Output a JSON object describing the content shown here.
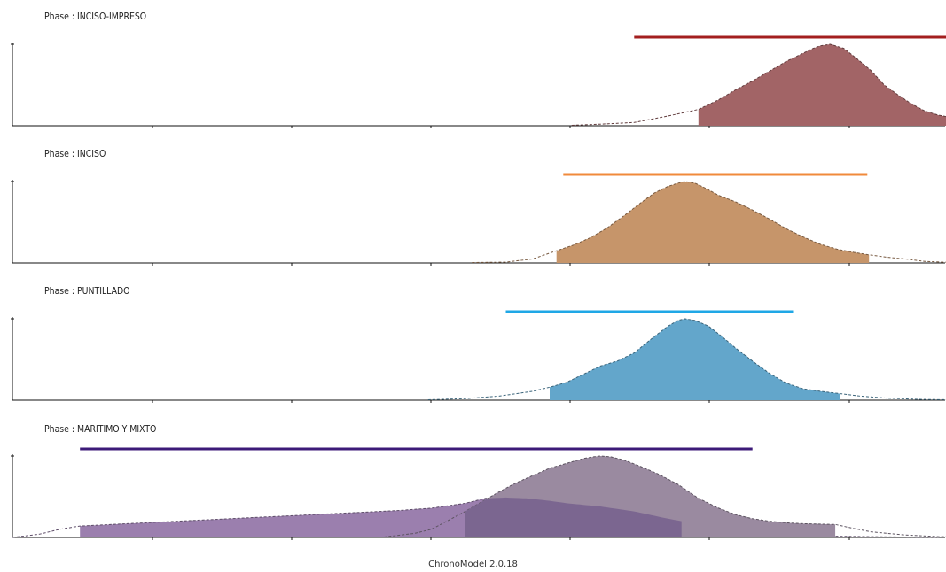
{
  "footer": "ChronoModel 2.0.18",
  "chart_data": [
    {
      "type": "area",
      "title": "Phase : INCISO-IMPRESO",
      "color": "#a26466",
      "bar_color": "#a31f1f",
      "interval": [
        -1200,
        -170
      ],
      "highlight": [
        -1010,
        -60
      ],
      "density": [
        [
          -1385,
          0.005
        ],
        [
          -1300,
          0.02
        ],
        [
          -1200,
          0.04
        ],
        [
          -1100,
          0.12
        ],
        [
          -1010,
          0.2
        ],
        [
          -950,
          0.32
        ],
        [
          -900,
          0.44
        ],
        [
          -850,
          0.55
        ],
        [
          -800,
          0.67
        ],
        [
          -750,
          0.79
        ],
        [
          -700,
          0.89
        ],
        [
          -670,
          0.95
        ],
        [
          -650,
          0.98
        ],
        [
          -620,
          1.0
        ],
        [
          -580,
          0.95
        ],
        [
          -540,
          0.82
        ],
        [
          -500,
          0.68
        ],
        [
          -460,
          0.5
        ],
        [
          -420,
          0.38
        ],
        [
          -380,
          0.27
        ],
        [
          -340,
          0.18
        ],
        [
          -300,
          0.13
        ],
        [
          -260,
          0.1
        ],
        [
          -200,
          0.07
        ],
        [
          -150,
          0.05
        ],
        [
          -100,
          0.035
        ],
        [
          -60,
          0.025
        ]
      ],
      "ylim": [
        0,
        1.1
      ]
    },
    {
      "type": "area",
      "title": "Phase : INCISO",
      "color": "#c6956a",
      "bar_color": "#f08a3b",
      "interval": [
        -1410,
        -510
      ],
      "highlight": [
        -1430,
        -505
      ],
      "density": [
        [
          -1680,
          0.005
        ],
        [
          -1580,
          0.01
        ],
        [
          -1500,
          0.05
        ],
        [
          -1430,
          0.15
        ],
        [
          -1380,
          0.22
        ],
        [
          -1330,
          0.31
        ],
        [
          -1280,
          0.43
        ],
        [
          -1230,
          0.58
        ],
        [
          -1180,
          0.74
        ],
        [
          -1140,
          0.86
        ],
        [
          -1100,
          0.94
        ],
        [
          -1070,
          0.98
        ],
        [
          -1050,
          1.0
        ],
        [
          -1020,
          0.98
        ],
        [
          -990,
          0.92
        ],
        [
          -950,
          0.83
        ],
        [
          -900,
          0.75
        ],
        [
          -850,
          0.65
        ],
        [
          -800,
          0.54
        ],
        [
          -750,
          0.42
        ],
        [
          -700,
          0.32
        ],
        [
          -650,
          0.23
        ],
        [
          -600,
          0.17
        ],
        [
          -550,
          0.13
        ],
        [
          -505,
          0.1
        ],
        [
          -450,
          0.07
        ],
        [
          -400,
          0.05
        ],
        [
          -340,
          0.02
        ],
        [
          -260,
          0.005
        ]
      ],
      "ylim": [
        0,
        1.1
      ]
    },
    {
      "type": "area",
      "title": "Phase : PUNTILLADO",
      "color": "#63a6cb",
      "bar_color": "#1fa7e6",
      "interval": [
        -1580,
        -730
      ],
      "highlight": [
        -1450,
        -590
      ],
      "density": [
        [
          -1810,
          0.005
        ],
        [
          -1700,
          0.02
        ],
        [
          -1600,
          0.05
        ],
        [
          -1500,
          0.11
        ],
        [
          -1450,
          0.16
        ],
        [
          -1400,
          0.22
        ],
        [
          -1350,
          0.32
        ],
        [
          -1300,
          0.42
        ],
        [
          -1250,
          0.48
        ],
        [
          -1200,
          0.58
        ],
        [
          -1150,
          0.75
        ],
        [
          -1100,
          0.91
        ],
        [
          -1070,
          0.98
        ],
        [
          -1050,
          1.0
        ],
        [
          -1020,
          0.98
        ],
        [
          -980,
          0.91
        ],
        [
          -940,
          0.78
        ],
        [
          -900,
          0.64
        ],
        [
          -850,
          0.48
        ],
        [
          -800,
          0.33
        ],
        [
          -750,
          0.21
        ],
        [
          -700,
          0.14
        ],
        [
          -650,
          0.11
        ],
        [
          -590,
          0.08
        ],
        [
          -530,
          0.05
        ],
        [
          -450,
          0.025
        ],
        [
          -350,
          0.01
        ],
        [
          -270,
          0.005
        ]
      ],
      "ylim": [
        0,
        1.1
      ]
    },
    {
      "type": "area",
      "title": "Phase : MARITIMO Y MIXTO",
      "color": "#9b7fae",
      "bar_color": "#3c1a78",
      "bar_color_2": "#1e1a5a",
      "interval": [
        -2840,
        -850
      ],
      "highlight": [
        -2840,
        -1060
      ],
      "density": [
        [
          -3040,
          0.0
        ],
        [
          -2960,
          0.04
        ],
        [
          -2900,
          0.1
        ],
        [
          -2840,
          0.14
        ],
        [
          -2700,
          0.17
        ],
        [
          -2500,
          0.21
        ],
        [
          -2300,
          0.25
        ],
        [
          -2100,
          0.29
        ],
        [
          -1900,
          0.33
        ],
        [
          -1800,
          0.36
        ],
        [
          -1700,
          0.42
        ],
        [
          -1640,
          0.48
        ],
        [
          -1580,
          0.49
        ],
        [
          -1520,
          0.48
        ],
        [
          -1450,
          0.45
        ],
        [
          -1400,
          0.42
        ],
        [
          -1300,
          0.38
        ],
        [
          -1200,
          0.32
        ],
        [
          -1100,
          0.23
        ],
        [
          -1060,
          0.2
        ],
        [
          -1000,
          0.12
        ],
        [
          -900,
          0.06
        ],
        [
          -800,
          0.03
        ],
        [
          -700,
          0.02
        ],
        [
          -500,
          0.01
        ],
        [
          -300,
          0.0
        ]
      ],
      "highlight_2": [
        -1700,
        -605
      ],
      "density_2": [
        [
          -1940,
          0.005
        ],
        [
          -1850,
          0.05
        ],
        [
          -1800,
          0.1
        ],
        [
          -1700,
          0.32
        ],
        [
          -1650,
          0.44
        ],
        [
          -1600,
          0.56
        ],
        [
          -1550,
          0.67
        ],
        [
          -1500,
          0.76
        ],
        [
          -1450,
          0.85
        ],
        [
          -1400,
          0.91
        ],
        [
          -1350,
          0.97
        ],
        [
          -1320,
          0.99
        ],
        [
          -1300,
          1.0
        ],
        [
          -1270,
          0.99
        ],
        [
          -1230,
          0.95
        ],
        [
          -1180,
          0.87
        ],
        [
          -1130,
          0.78
        ],
        [
          -1070,
          0.65
        ],
        [
          -1010,
          0.48
        ],
        [
          -950,
          0.36
        ],
        [
          -900,
          0.28
        ],
        [
          -850,
          0.23
        ],
        [
          -800,
          0.2
        ],
        [
          -750,
          0.18
        ],
        [
          -700,
          0.17
        ],
        [
          -605,
          0.16
        ],
        [
          -550,
          0.11
        ],
        [
          -500,
          0.07
        ],
        [
          -400,
          0.03
        ],
        [
          -300,
          0.01
        ],
        [
          -160,
          0.005
        ]
      ],
      "color_2": "#9a8aa0",
      "overlap_color": "#7b6690",
      "ylim": [
        0,
        1.1
      ]
    }
  ]
}
